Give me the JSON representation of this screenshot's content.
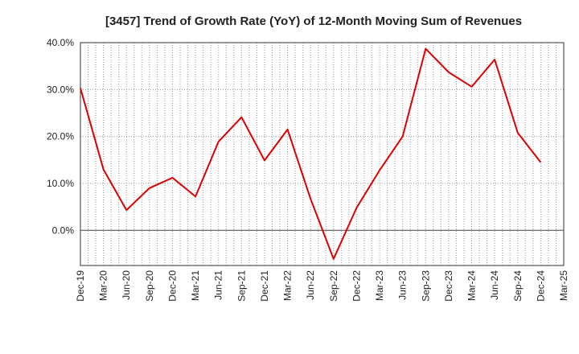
{
  "chart_data": {
    "type": "line",
    "title": "[3457]  Trend of Growth Rate (YoY) of 12-Month Moving Sum of Revenues",
    "xlabel": "",
    "ylabel": "",
    "y_tick_labels": [
      "40.0%",
      "30.0%",
      "20.0%",
      "10.0%",
      "0.0%"
    ],
    "y_ticks": [
      40,
      30,
      20,
      10,
      0
    ],
    "ylim": [
      -7.5,
      40
    ],
    "zero_line": true,
    "grid": true,
    "x_tick_labels": [
      "Dec-19",
      "Mar-20",
      "Jun-20",
      "Sep-20",
      "Dec-20",
      "Mar-21",
      "Jun-21",
      "Sep-21",
      "Dec-21",
      "Mar-22",
      "Jun-22",
      "Sep-22",
      "Dec-22",
      "Mar-23",
      "Jun-23",
      "Sep-23",
      "Dec-23",
      "Mar-24",
      "Jun-24",
      "Sep-24",
      "Dec-24",
      "Mar-25"
    ],
    "series": [
      {
        "color": "#dd0000",
        "x": [
          "Dec-19",
          "Mar-20",
          "Jun-20",
          "Sep-20",
          "Dec-20",
          "Mar-21",
          "Jun-21",
          "Sep-21",
          "Dec-21",
          "Mar-22",
          "Jun-22",
          "Sep-22",
          "Dec-22",
          "Mar-23",
          "Jun-23",
          "Sep-23",
          "Dec-23",
          "Mar-24",
          "Jun-24",
          "Sep-24",
          "Dec-24"
        ],
        "values": [
          30.3,
          13.0,
          4.3,
          9.0,
          11.2,
          7.2,
          18.9,
          24.1,
          14.9,
          21.5,
          6.7,
          -6.1,
          4.8,
          12.8,
          20.0,
          38.7,
          33.7,
          30.6,
          36.4,
          20.8,
          14.5
        ]
      }
    ]
  }
}
